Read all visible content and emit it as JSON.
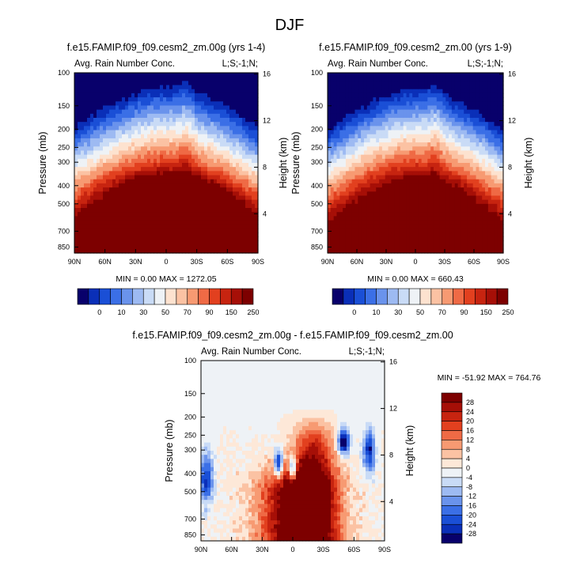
{
  "title": "DJF",
  "chart_data": [
    {
      "type": "heatmap",
      "title": "f.e15.FAMIP.f09_f09.cesm2_zm.00g (yrs 1-4)",
      "left_label": "Avg. Rain Number Conc.",
      "right_label": "L;S;-1;N;",
      "xlabel": "",
      "ylabel": "Pressure (mb)",
      "y2label": "Height (km)",
      "x_ticks": [
        "90N",
        "60N",
        "30N",
        "0",
        "30S",
        "60S",
        "90S"
      ],
      "y_ticks": [
        "100",
        "150",
        "200",
        "250",
        "300",
        "400",
        "500",
        "700",
        "850"
      ],
      "y2_ticks": [
        "16",
        "12",
        "8",
        "4"
      ],
      "stats": {
        "min_label": "MIN =",
        "min": "0.00",
        "max_label": "MAX =",
        "max": "1272.05"
      },
      "levels": [
        "0",
        "10",
        "30",
        "50",
        "70",
        "90",
        "150",
        "250"
      ],
      "palette": [
        "#08006b",
        "#0a2fb8",
        "#1a4fd6",
        "#3b6fe6",
        "#6a93ec",
        "#9dbaf2",
        "#c9dbf6",
        "#eef2f6",
        "#fde2cf",
        "#fbc2a3",
        "#f79a72",
        "#ef6a45",
        "#e2401f",
        "#c72410",
        "#a60f07",
        "#7d0000"
      ]
    },
    {
      "type": "heatmap",
      "title": "f.e15.FAMIP.f09_f09.cesm2_zm.00 (yrs 1-9)",
      "left_label": "Avg. Rain Number Conc.",
      "right_label": "L;S;-1;N;",
      "xlabel": "",
      "ylabel": "Pressure (mb)",
      "y2label": "Height (km)",
      "x_ticks": [
        "90N",
        "60N",
        "30N",
        "0",
        "30S",
        "60S",
        "90S"
      ],
      "y_ticks": [
        "100",
        "150",
        "200",
        "250",
        "300",
        "400",
        "500",
        "700",
        "850"
      ],
      "y2_ticks": [
        "16",
        "12",
        "8",
        "4"
      ],
      "stats": {
        "min_label": "MIN =",
        "min": "0.00",
        "max_label": "MAX =",
        "max": "660.43"
      },
      "levels": [
        "0",
        "10",
        "30",
        "50",
        "70",
        "90",
        "150",
        "250"
      ],
      "palette": [
        "#08006b",
        "#0a2fb8",
        "#1a4fd6",
        "#3b6fe6",
        "#6a93ec",
        "#9dbaf2",
        "#c9dbf6",
        "#eef2f6",
        "#fde2cf",
        "#fbc2a3",
        "#f79a72",
        "#ef6a45",
        "#e2401f",
        "#c72410",
        "#a60f07",
        "#7d0000"
      ]
    },
    {
      "type": "heatmap",
      "title": "f.e15.FAMIP.f09_f09.cesm2_zm.00g - f.e15.FAMIP.f09_f09.cesm2_zm.00",
      "left_label": "Avg. Rain Number Conc.",
      "right_label": "L;S;-1;N;",
      "xlabel": "",
      "ylabel": "Pressure (mb)",
      "y2label": "Height (km)",
      "x_ticks": [
        "90N",
        "60N",
        "30N",
        "0",
        "30S",
        "60S",
        "90S"
      ],
      "y_ticks": [
        "100",
        "150",
        "200",
        "250",
        "300",
        "400",
        "500",
        "700",
        "850"
      ],
      "y2_ticks": [
        "16",
        "12",
        "8",
        "4"
      ],
      "stats": {
        "min_label": "MIN =",
        "min": "-51.92",
        "max_label": "MAX =",
        "max": "764.76"
      },
      "levels": [
        "28",
        "24",
        "20",
        "16",
        "12",
        "8",
        "4",
        "0",
        "-4",
        "-8",
        "-12",
        "-16",
        "-20",
        "-24",
        "-28"
      ],
      "palette": [
        "#7d0000",
        "#a60f07",
        "#c72410",
        "#e2401f",
        "#ef6a45",
        "#f79a72",
        "#fbc2a3",
        "#fde8d8",
        "#eef2f6",
        "#c9dbf6",
        "#9dbaf2",
        "#6a93ec",
        "#3b6fe6",
        "#1a4fd6",
        "#0a2fb8",
        "#08006b"
      ]
    }
  ]
}
